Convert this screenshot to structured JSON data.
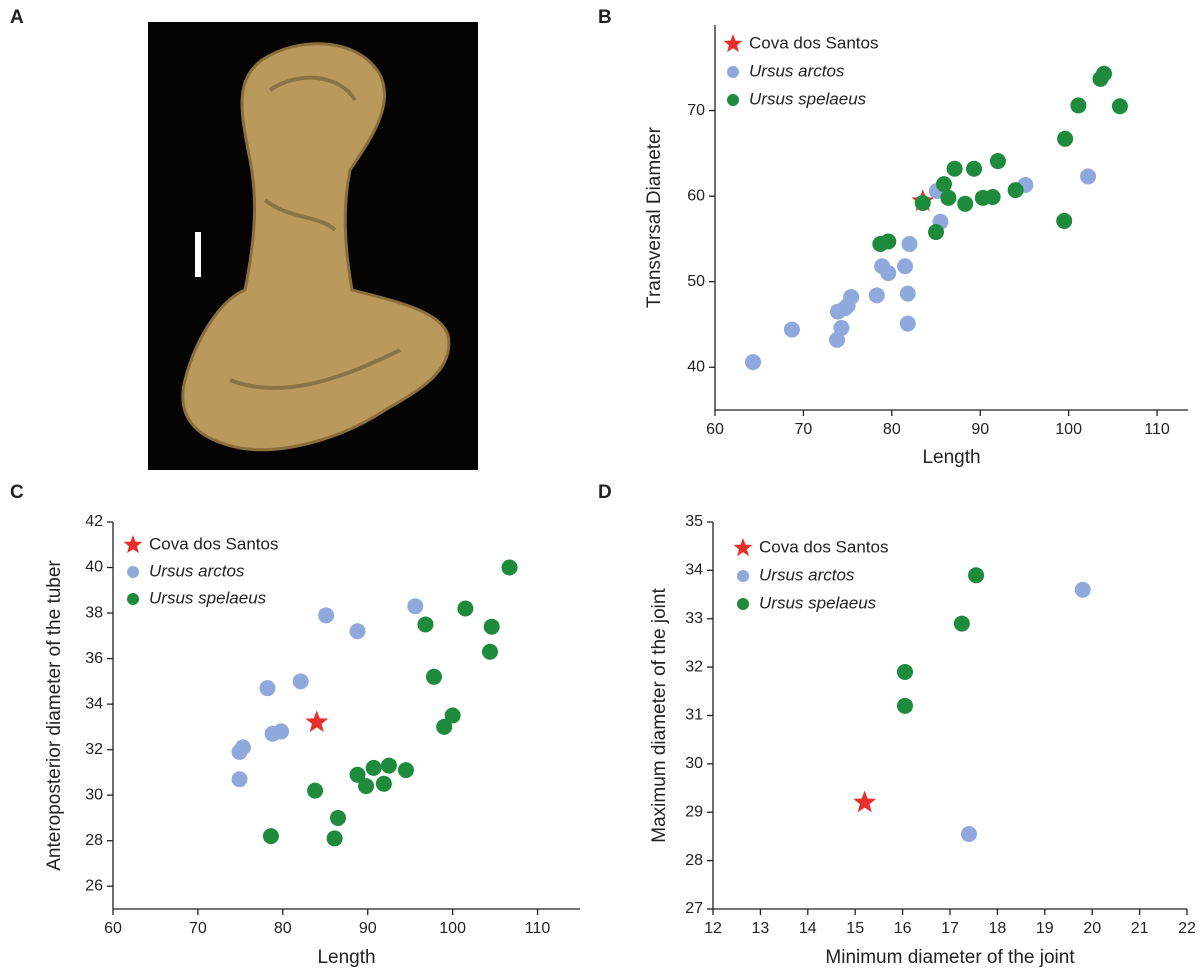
{
  "image_panel": {
    "label": "A"
  },
  "chart_data": [
    {
      "type": "scatter",
      "panel_label": "B",
      "x_label": "Length",
      "y_label": "Transversal Diameter",
      "xlim": [
        60,
        113.5
      ],
      "ylim": [
        35,
        80
      ],
      "xticks": [
        60,
        70,
        80,
        90,
        100,
        110
      ],
      "yticks": [
        40,
        50,
        60,
        70
      ],
      "legend": "upper left",
      "series": [
        {
          "name": "Cova dos Santos",
          "color": "#e8302a",
          "marker": "star",
          "italic": false,
          "x": [
            83.5
          ],
          "values": [
            59.4
          ]
        },
        {
          "name": "Ursus arctos",
          "color": "#8fa9dc",
          "marker": "circle",
          "italic": true,
          "x": [
            64.3,
            68.7,
            73.8,
            73.9,
            74.3,
            74.7,
            75.0,
            75.4,
            78.3,
            78.9,
            79.6,
            81.5,
            81.8,
            81.8,
            82.0,
            85.1,
            85.5,
            95.1,
            102.2
          ],
          "values": [
            40.6,
            44.4,
            43.2,
            46.5,
            44.6,
            46.9,
            47.2,
            48.2,
            48.4,
            51.8,
            51.0,
            51.8,
            45.1,
            48.6,
            54.4,
            60.6,
            57.0,
            61.3,
            62.3
          ]
        },
        {
          "name": "Ursus spelaeus",
          "color": "#1e8a3c",
          "marker": "circle",
          "italic": true,
          "x": [
            78.7,
            79.6,
            83.5,
            85.0,
            85.9,
            86.4,
            87.1,
            88.3,
            89.3,
            90.3,
            91.4,
            92.0,
            94.0,
            99.5,
            99.6,
            101.1,
            103.6,
            104.0,
            105.8
          ],
          "values": [
            54.4,
            54.7,
            59.2,
            55.8,
            61.4,
            59.8,
            63.2,
            59.1,
            63.2,
            59.8,
            59.9,
            64.1,
            60.7,
            57.1,
            66.7,
            70.6,
            73.7,
            74.3,
            70.5
          ]
        }
      ]
    },
    {
      "type": "scatter",
      "panel_label": "C",
      "x_label": "Length",
      "y_label": "Anteroposterior diameter of the tuber",
      "xlim": [
        60,
        115
      ],
      "ylim": [
        25,
        42
      ],
      "xticks": [
        60,
        70,
        80,
        90,
        100,
        110
      ],
      "yticks": [
        26,
        28,
        30,
        32,
        34,
        36,
        38,
        40,
        42
      ],
      "legend": "upper left",
      "series": [
        {
          "name": "Cova dos Santos",
          "color": "#e8302a",
          "marker": "star",
          "italic": false,
          "x": [
            84.0
          ],
          "values": [
            33.2
          ]
        },
        {
          "name": "Ursus arctos",
          "color": "#8fa9dc",
          "marker": "circle",
          "italic": true,
          "x": [
            74.9,
            74.9,
            75.3,
            78.2,
            78.8,
            79.8,
            82.1,
            85.1,
            88.8,
            95.6
          ],
          "values": [
            30.7,
            31.9,
            32.1,
            34.7,
            32.7,
            32.8,
            35.0,
            37.9,
            37.2,
            38.3
          ]
        },
        {
          "name": "Ursus spelaeus",
          "color": "#1e8a3c",
          "marker": "circle",
          "italic": true,
          "x": [
            78.6,
            83.8,
            86.1,
            86.5,
            88.8,
            89.8,
            90.7,
            91.9,
            92.5,
            94.5,
            96.8,
            97.8,
            99.0,
            100.0,
            101.5,
            104.6,
            104.4,
            106.7
          ],
          "values": [
            28.2,
            30.2,
            28.1,
            29.0,
            30.9,
            30.4,
            31.2,
            30.5,
            31.3,
            31.1,
            37.5,
            35.2,
            33.0,
            33.5,
            38.2,
            37.4,
            36.3,
            40.0
          ]
        }
      ]
    },
    {
      "type": "scatter",
      "panel_label": "D",
      "x_label": "Minimum diameter of the joint",
      "y_label": "Maximum diameter of the joint",
      "xlim": [
        12,
        22
      ],
      "ylim": [
        27,
        35
      ],
      "xticks": [
        12,
        13,
        14,
        15,
        16,
        17,
        18,
        19,
        20,
        21,
        22
      ],
      "yticks": [
        27,
        28,
        29,
        30,
        31,
        32,
        33,
        34,
        35
      ],
      "legend": "upper left",
      "series": [
        {
          "name": "Cova dos Santos",
          "color": "#e8302a",
          "marker": "star",
          "italic": false,
          "x": [
            15.2
          ],
          "values": [
            29.2
          ]
        },
        {
          "name": "Ursus arctos",
          "color": "#8fa9dc",
          "marker": "circle",
          "italic": true,
          "x": [
            17.4,
            19.8
          ],
          "values": [
            28.55,
            33.6
          ]
        },
        {
          "name": "Ursus spelaeus",
          "color": "#1e8a3c",
          "marker": "circle",
          "italic": true,
          "x": [
            17.55,
            17.25,
            16.05,
            16.05
          ],
          "values": [
            33.9,
            32.9,
            31.9,
            31.2
          ]
        }
      ]
    }
  ]
}
